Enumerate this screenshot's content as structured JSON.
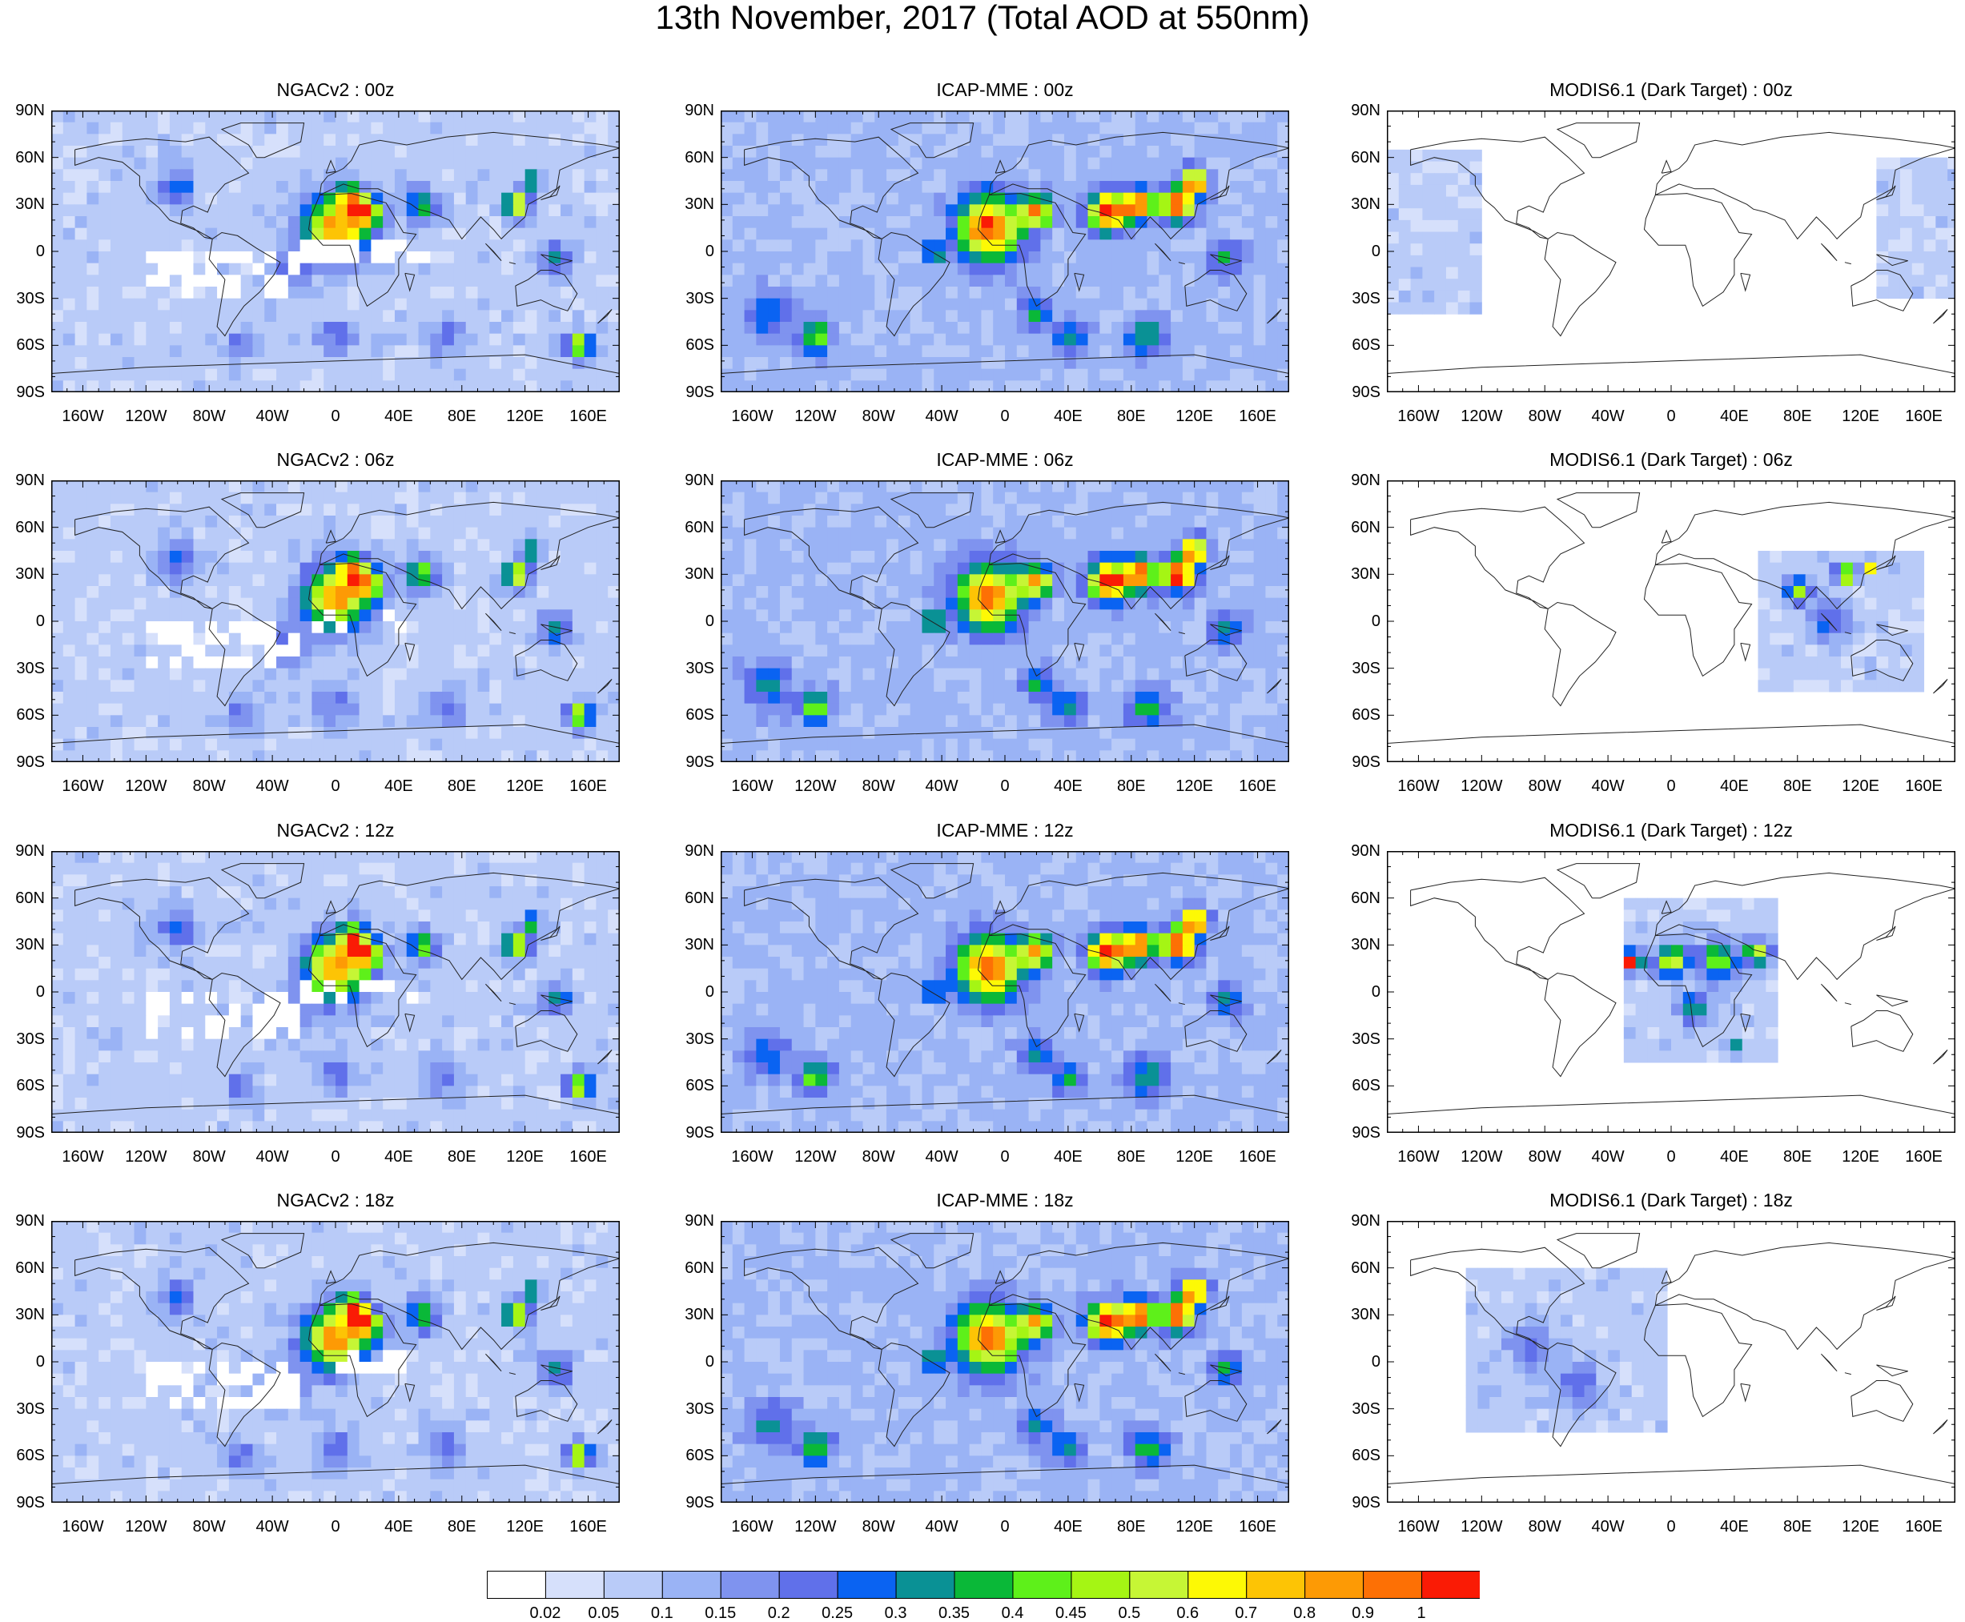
{
  "title": "13th November, 2017 (Total AOD at 550nm)",
  "columns": [
    {
      "model": "NGACv2",
      "style": "model",
      "extent": null
    },
    {
      "model": "ICAP-MME",
      "style": "model-high",
      "extent": null
    },
    {
      "model": "MODIS6.1 (Dark Target)",
      "style": "swath",
      "extent": null
    }
  ],
  "times": [
    "00z",
    "06z",
    "12z",
    "18z"
  ],
  "panel_titles": [
    [
      "NGACv2 : 00z",
      "ICAP-MME : 00z",
      "MODIS6.1 (Dark Target) : 00z"
    ],
    [
      "NGACv2 : 06z",
      "ICAP-MME : 06z",
      "MODIS6.1 (Dark Target) : 06z"
    ],
    [
      "NGACv2 : 12z",
      "ICAP-MME : 12z",
      "MODIS6.1 (Dark Target) : 12z"
    ],
    [
      "NGACv2 : 18z",
      "ICAP-MME : 18z",
      "MODIS6.1 (Dark Target) : 18z"
    ]
  ],
  "lat_ticks": [
    "90N",
    "60N",
    "30N",
    "0",
    "30S",
    "60S",
    "90S"
  ],
  "lon_ticks": [
    "160W",
    "120W",
    "80W",
    "40W",
    "0",
    "40E",
    "80E",
    "120E",
    "160E"
  ],
  "lon_tick_values": [
    -160,
    -120,
    -80,
    -40,
    0,
    40,
    80,
    120,
    160
  ],
  "lat_tick_values": [
    90,
    60,
    30,
    0,
    -30,
    -60,
    -90
  ],
  "colorbar": {
    "labels": [
      "0.02",
      "0.05",
      "0.1",
      "0.15",
      "0.2",
      "0.25",
      "0.3",
      "0.35",
      "0.4",
      "0.45",
      "0.5",
      "0.6",
      "0.7",
      "0.8",
      "0.9",
      "1"
    ],
    "colors": [
      "#ffffff",
      "#d6e0fb",
      "#b9cbf8",
      "#9ab3f5",
      "#7f93ef",
      "#6070ea",
      "#0a63f2",
      "#0a9195",
      "#0ab838",
      "#5ef01a",
      "#a5f514",
      "#c6f635",
      "#fdf905",
      "#fdc405",
      "#fd9a05",
      "#fd7005",
      "#fa1b05"
    ]
  },
  "swaths": [
    [
      {
        "lon": [
          -180,
          -123
        ],
        "lat": [
          -40,
          65
        ]
      },
      {
        "lon": [
          130,
          180
        ],
        "lat": [
          -30,
          60
        ]
      }
    ],
    [
      {
        "lon": [
          55,
          160
        ],
        "lat": [
          -40,
          45
        ]
      }
    ],
    [
      {
        "lon": [
          -30,
          65
        ],
        "lat": [
          -40,
          60
        ]
      }
    ],
    [
      {
        "lon": [
          -130,
          -5
        ],
        "lat": [
          -40,
          60
        ]
      }
    ]
  ]
}
